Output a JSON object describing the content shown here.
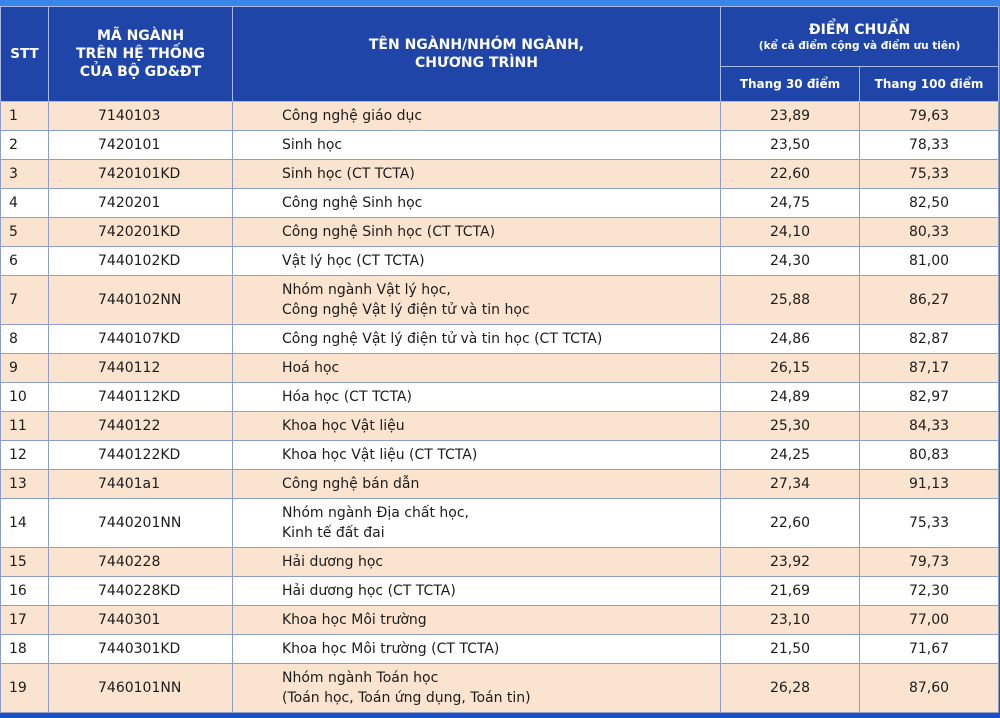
{
  "header": {
    "stt": "STT",
    "code_line1": "MÃ NGÀNH",
    "code_line2": "TRÊN HỆ THỐNG",
    "code_line3": "CỦA BỘ GD&ĐT",
    "name_line1": "TÊN NGÀNH/NHÓM NGÀNH,",
    "name_line2": "CHƯƠNG TRÌNH",
    "score_title": "ĐIỂM CHUẨN",
    "score_note": "(kể cả điểm cộng và điểm ưu tiên)",
    "scale30": "Thang 30 điểm",
    "scale100": "Thang 100 điểm"
  },
  "rows": [
    {
      "stt": "1",
      "code": "7140103",
      "name1": "Công nghệ giáo dục",
      "name2": "",
      "s30": "23,89",
      "s100": "79,63"
    },
    {
      "stt": "2",
      "code": "7420101",
      "name1": "Sinh học",
      "name2": "",
      "s30": "23,50",
      "s100": "78,33"
    },
    {
      "stt": "3",
      "code": "7420101KD",
      "name1": "Sinh học (CT TCTA)",
      "name2": "",
      "s30": "22,60",
      "s100": "75,33"
    },
    {
      "stt": "4",
      "code": "7420201",
      "name1": "Công nghệ Sinh học",
      "name2": "",
      "s30": "24,75",
      "s100": "82,50"
    },
    {
      "stt": "5",
      "code": "7420201KD",
      "name1": "Công nghệ Sinh học (CT TCTA)",
      "name2": "",
      "s30": "24,10",
      "s100": "80,33"
    },
    {
      "stt": "6",
      "code": "7440102KD",
      "name1": "Vật lý học (CT TCTA)",
      "name2": "",
      "s30": "24,30",
      "s100": "81,00"
    },
    {
      "stt": "7",
      "code": "7440102NN",
      "name1": "Nhóm ngành Vật lý học,",
      "name2": "Công nghệ Vật lý điện tử và tin học",
      "s30": "25,88",
      "s100": "86,27"
    },
    {
      "stt": "8",
      "code": "7440107KD",
      "name1": "Công nghệ Vật lý điện tử và tin học (CT TCTA)",
      "name2": "",
      "s30": "24,86",
      "s100": "82,87"
    },
    {
      "stt": "9",
      "code": "7440112",
      "name1": "Hoá học",
      "name2": "",
      "s30": "26,15",
      "s100": "87,17"
    },
    {
      "stt": "10",
      "code": "7440112KD",
      "name1": "Hóa học (CT TCTA)",
      "name2": "",
      "s30": "24,89",
      "s100": "82,97"
    },
    {
      "stt": "11",
      "code": "7440122",
      "name1": "Khoa học Vật liệu",
      "name2": "",
      "s30": "25,30",
      "s100": "84,33"
    },
    {
      "stt": "12",
      "code": "7440122KD",
      "name1": "Khoa học Vật liệu (CT TCTA)",
      "name2": "",
      "s30": "24,25",
      "s100": "80,83"
    },
    {
      "stt": "13",
      "code": "74401a1",
      "name1": "Công nghệ bán dẫn",
      "name2": "",
      "s30": "27,34",
      "s100": "91,13"
    },
    {
      "stt": "14",
      "code": "7440201NN",
      "name1": "Nhóm ngành Địa chất học,",
      "name2": "Kinh tế đất đai",
      "s30": "22,60",
      "s100": "75,33"
    },
    {
      "stt": "15",
      "code": "7440228",
      "name1": "Hải dương học",
      "name2": "",
      "s30": "23,92",
      "s100": "79,73"
    },
    {
      "stt": "16",
      "code": "7440228KD",
      "name1": "Hải dương học (CT TCTA)",
      "name2": "",
      "s30": "21,69",
      "s100": "72,30"
    },
    {
      "stt": "17",
      "code": "7440301",
      "name1": "Khoa học Môi trường",
      "name2": "",
      "s30": "23,10",
      "s100": "77,00"
    },
    {
      "stt": "18",
      "code": "7440301KD",
      "name1": "Khoa học Môi trường (CT TCTA)",
      "name2": "",
      "s30": "21,50",
      "s100": "71,67"
    },
    {
      "stt": "19",
      "code": "7460101NN",
      "name1": "Nhóm ngành Toán học",
      "name2": "(Toán học, Toán ứng dụng, Toán tin)",
      "s30": "26,28",
      "s100": "87,60"
    }
  ]
}
